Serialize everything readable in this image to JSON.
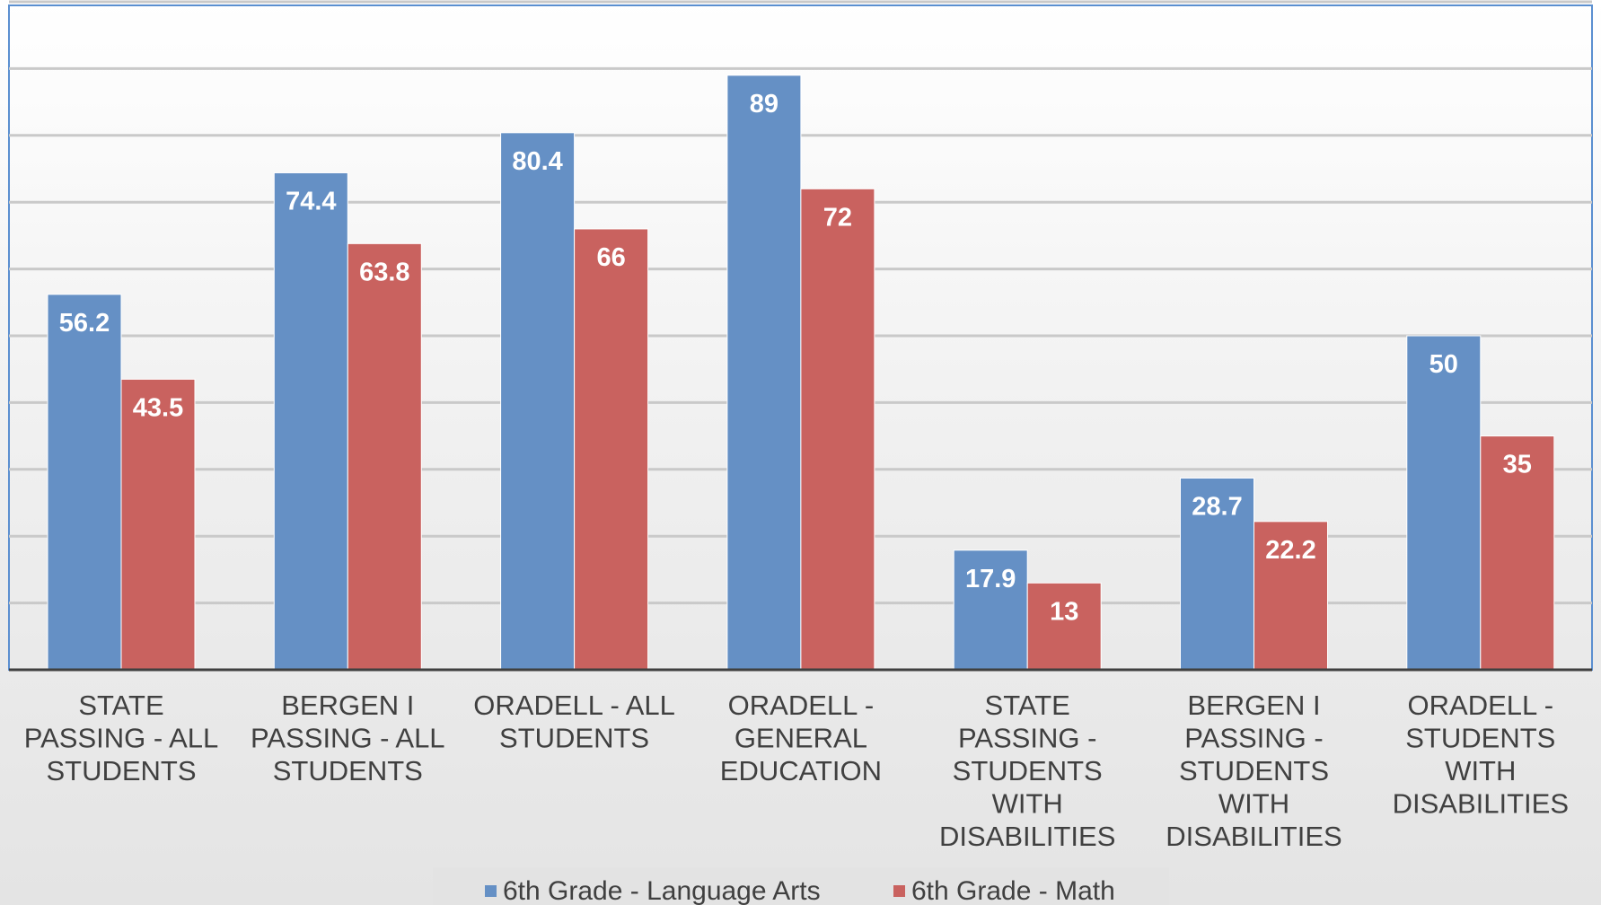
{
  "chart_data": {
    "type": "bar",
    "categories": [
      "STATE PASSING - ALL STUDENTS",
      "BERGEN I PASSING - ALL STUDENTS",
      "ORADELL - ALL STUDENTS",
      "ORADELL - GENERAL EDUCATION",
      "STATE PASSING - STUDENTS WITH DISABILITIES",
      "BERGEN I PASSING - STUDENTS WITH DISABILITIES",
      "ORADELL - STUDENTS WITH DISABILITIES"
    ],
    "category_lines": [
      [
        "STATE",
        "PASSING - ALL",
        "STUDENTS"
      ],
      [
        "BERGEN I",
        "PASSING - ALL",
        "STUDENTS"
      ],
      [
        "ORADELL - ALL",
        "STUDENTS"
      ],
      [
        "ORADELL -",
        "GENERAL",
        "EDUCATION"
      ],
      [
        "STATE",
        "PASSING -",
        "STUDENTS",
        "WITH",
        "DISABILITIES"
      ],
      [
        "BERGEN I",
        "PASSING -",
        "STUDENTS",
        "WITH",
        "DISABILITIES"
      ],
      [
        "ORADELL -",
        "STUDENTS",
        "WITH",
        "DISABILITIES"
      ]
    ],
    "series": [
      {
        "name": "6th Grade - Language Arts",
        "color": "#6590c5",
        "values": [
          56.2,
          74.4,
          80.4,
          89,
          17.9,
          28.7,
          50
        ]
      },
      {
        "name": "6th Grade - Math",
        "color": "#c9625f",
        "values": [
          43.5,
          63.8,
          66,
          72,
          13,
          22.2,
          35
        ]
      }
    ],
    "ylim": [
      0,
      100
    ],
    "grid": true,
    "legend_position": "bottom",
    "data_labels": true,
    "title": "",
    "xlabel": "",
    "ylabel": ""
  }
}
